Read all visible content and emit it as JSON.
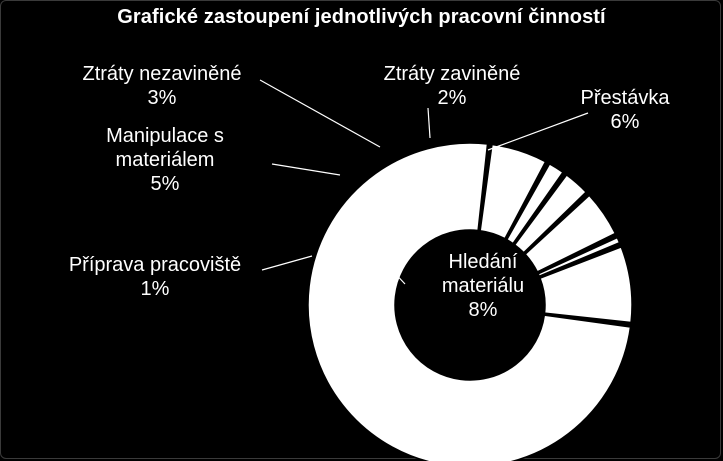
{
  "chart_data": {
    "type": "pie",
    "style": "doughnut",
    "title": "Grafické zastoupení jednotlivých pracovní činností",
    "colors": {
      "background": "#000000",
      "slice": "#ffffff",
      "text": "#ffffff",
      "inner_text": "#000000"
    },
    "slices": [
      {
        "label_lines": [
          "Přestávka"
        ],
        "value_text": "6%",
        "value": 6
      },
      {
        "label_lines": [
          "Ztráty zaviněné"
        ],
        "value_text": "2%",
        "value": 2
      },
      {
        "label_lines": [
          "Ztráty nezaviněné"
        ],
        "value_text": "3%",
        "value": 3
      },
      {
        "label_lines": [
          "Manipulace s",
          "materiálem"
        ],
        "value_text": "5%",
        "value": 5
      },
      {
        "label_lines": [
          "Příprava pracoviště"
        ],
        "value_text": "1%",
        "value": 1
      },
      {
        "label_lines": [
          "Hledání",
          "materiálu"
        ],
        "value_text": "8%",
        "value": 8
      },
      {
        "label_lines": [],
        "value_text": "",
        "value": 75
      }
    ]
  }
}
